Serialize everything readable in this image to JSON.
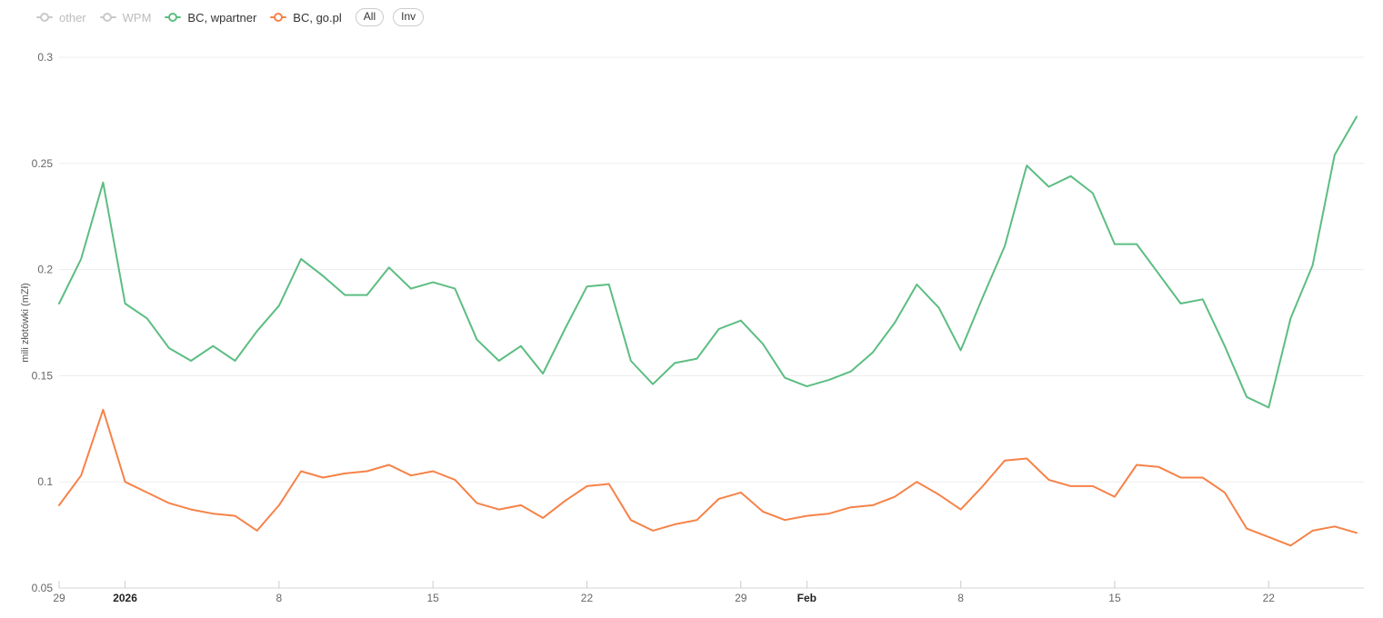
{
  "legend": {
    "items": [
      {
        "label": "other",
        "color": "#c9c9c9",
        "state": "disabled"
      },
      {
        "label": "WPM",
        "color": "#c9c9c9",
        "state": "disabled"
      },
      {
        "label": "BC, wpartner",
        "color": "#5cbd82",
        "state": "active"
      },
      {
        "label": "BC, go.pl",
        "color": "#f68248",
        "state": "active"
      }
    ],
    "buttons": [
      {
        "label": "All"
      },
      {
        "label": "Inv"
      }
    ]
  },
  "chart_data": {
    "type": "line",
    "title": "",
    "xlabel": "",
    "ylabel": "mili złotówki (mZł)",
    "ylim": [
      0.05,
      0.3
    ],
    "y_ticks": [
      0.3,
      0.25,
      0.2,
      0.15,
      0.1,
      0.05
    ],
    "grid": "horizontal",
    "legend_position": "top-left",
    "x_count": 60,
    "x_tick_labels": [
      {
        "index": 0,
        "label": "29",
        "bold": false
      },
      {
        "index": 3,
        "label": "2026",
        "bold": true
      },
      {
        "index": 10,
        "label": "8",
        "bold": false
      },
      {
        "index": 17,
        "label": "15",
        "bold": false
      },
      {
        "index": 24,
        "label": "22",
        "bold": false
      },
      {
        "index": 31,
        "label": "29",
        "bold": false
      },
      {
        "index": 34,
        "label": "Feb",
        "bold": true
      },
      {
        "index": 41,
        "label": "8",
        "bold": false
      },
      {
        "index": 48,
        "label": "15",
        "bold": false
      },
      {
        "index": 55,
        "label": "22",
        "bold": false
      }
    ],
    "disabled_series": [
      "other",
      "WPM"
    ],
    "series": [
      {
        "name": "BC, wpartner",
        "color": "#5cbd82",
        "values": [
          0.184,
          0.205,
          0.241,
          0.184,
          0.177,
          0.163,
          0.157,
          0.164,
          0.157,
          0.171,
          0.183,
          0.205,
          0.197,
          0.188,
          0.188,
          0.201,
          0.191,
          0.194,
          0.191,
          0.167,
          0.157,
          0.164,
          0.151,
          0.172,
          0.192,
          0.193,
          0.157,
          0.146,
          0.156,
          0.158,
          0.172,
          0.176,
          0.165,
          0.149,
          0.145,
          0.148,
          0.152,
          0.161,
          0.175,
          0.193,
          0.182,
          0.162,
          0.187,
          0.211,
          0.249,
          0.239,
          0.244,
          0.236,
          0.212,
          0.212,
          0.198,
          0.184,
          0.186,
          0.164,
          0.14,
          0.135,
          0.177,
          0.202,
          0.254,
          0.272
        ]
      },
      {
        "name": "BC, go.pl",
        "color": "#f68248",
        "values": [
          0.089,
          0.103,
          0.134,
          0.1,
          0.095,
          0.09,
          0.087,
          0.085,
          0.084,
          0.077,
          0.089,
          0.105,
          0.102,
          0.104,
          0.105,
          0.108,
          0.103,
          0.105,
          0.101,
          0.09,
          0.087,
          0.089,
          0.083,
          0.091,
          0.098,
          0.099,
          0.082,
          0.077,
          0.08,
          0.082,
          0.092,
          0.095,
          0.086,
          0.082,
          0.084,
          0.085,
          0.088,
          0.089,
          0.093,
          0.1,
          0.094,
          0.087,
          0.098,
          0.11,
          0.111,
          0.101,
          0.098,
          0.098,
          0.093,
          0.108,
          0.107,
          0.102,
          0.102,
          0.095,
          0.078,
          0.074,
          0.07,
          0.077,
          0.079,
          0.076
        ]
      }
    ]
  }
}
